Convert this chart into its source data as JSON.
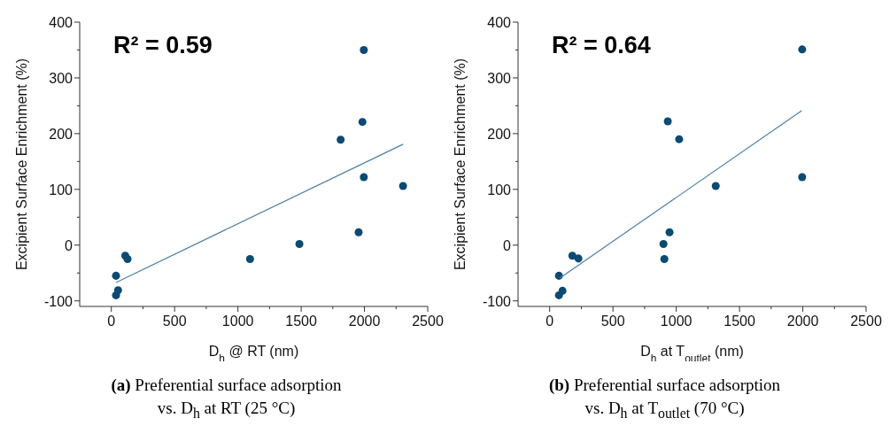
{
  "chart_data": [
    {
      "type": "scatter",
      "xlabel": "D$_{h}$ @ RT (nm)",
      "ylabel": "Excipient Surface Enrichment (%)",
      "annotations": [
        "R² = 0.59",
        "(a)",
        "Preferential surface adsorption",
        "vs. D$_{h}$ at RT (25 °C)"
      ],
      "xlim": [
        -250,
        2500
      ],
      "ylim": [
        -110,
        400
      ],
      "xticks": [
        0,
        {
          "value": 250,
          "label": null
        },
        500,
        {
          "value": 750,
          "label": null
        },
        1000,
        {
          "value": 1250,
          "label": null
        },
        1500,
        {
          "value": 1750,
          "label": null
        },
        2000,
        {
          "value": 2250,
          "label": null
        },
        2500
      ],
      "yticks": [
        -100,
        {
          "value": -50,
          "label": null
        },
        0,
        {
          "value": 50,
          "label": null
        },
        100,
        {
          "value": 150,
          "label": null
        },
        200,
        {
          "value": 250,
          "label": null
        },
        300,
        {
          "value": 350,
          "label": null
        },
        400
      ],
      "grid": false,
      "legend": false,
      "series": [
        {
          "type": "scatter",
          "color": "#0b4a73",
          "marker": "circle",
          "x": [
            37,
            37,
            53,
            110,
            128,
            1096,
            1486,
            1812,
            1984,
            1995,
            1995,
            1954,
            2305
          ],
          "values": [
            -55,
            -90,
            -81,
            -19,
            -25,
            -25,
            2,
            189,
            221,
            350,
            122,
            23,
            106
          ]
        },
        {
          "type": "line",
          "color": "#4d7ea8",
          "marker": "none",
          "x": [
            37,
            2305
          ],
          "values": [
            -67,
            181
          ]
        }
      ]
    },
    {
      "type": "scatter",
      "xlabel": "D$_{h}$ at T$_{outlet}$ (nm)",
      "ylabel": "Excipient Surface Enrichment (%)",
      "annotations": [
        "R² = 0.64",
        "(b)",
        "Preferential surface adsorption",
        "vs. D$_{h}$ at T$_{outlet}$ (70 °C)"
      ],
      "xlim": [
        -250,
        2500
      ],
      "ylim": [
        -110,
        400
      ],
      "xticks": [
        0,
        {
          "value": 250,
          "label": null
        },
        500,
        {
          "value": 750,
          "label": null
        },
        1000,
        {
          "value": 1250,
          "label": null
        },
        1500,
        {
          "value": 1750,
          "label": null
        },
        2000,
        {
          "value": 2250,
          "label": null
        },
        2500
      ],
      "yticks": [
        -100,
        {
          "value": -50,
          "label": null
        },
        0,
        {
          "value": 50,
          "label": null
        },
        100,
        {
          "value": 150,
          "label": null
        },
        200,
        {
          "value": 250,
          "label": null
        },
        300,
        {
          "value": 350,
          "label": null
        },
        400
      ],
      "grid": false,
      "legend": false,
      "series": [
        {
          "type": "scatter",
          "color": "#0b4a73",
          "marker": "circle",
          "x": [
            73,
            73,
            101,
            179,
            227,
            899,
            906,
            947,
            933,
            1023,
            1312,
            1995,
            1995
          ],
          "values": [
            -55,
            -90,
            -82,
            -19,
            -24,
            2,
            -25,
            23,
            222,
            190,
            106,
            351,
            122
          ]
        },
        {
          "type": "line",
          "color": "#4d7ea8",
          "marker": "none",
          "x": [
            80,
            1991
          ],
          "values": [
            -59,
            241
          ]
        }
      ]
    }
  ]
}
